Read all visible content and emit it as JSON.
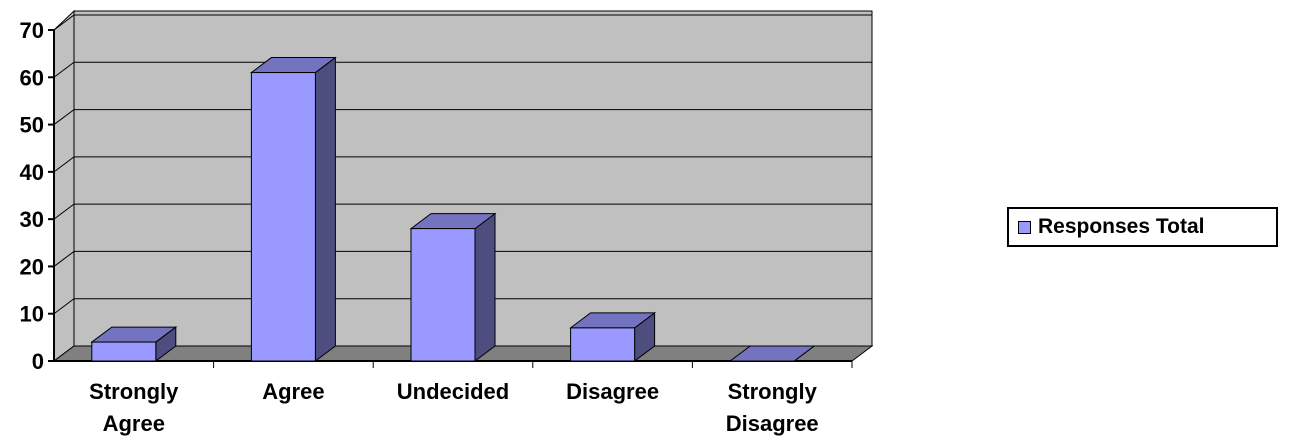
{
  "chart_data": {
    "type": "bar",
    "style": "3d-column",
    "categories": [
      [
        "Strongly",
        "Agree"
      ],
      [
        "Agree"
      ],
      [
        "Undecided"
      ],
      [
        "Disagree"
      ],
      [
        "Strongly",
        "Disagree"
      ]
    ],
    "series": [
      {
        "name": "Responses Total",
        "values": [
          4,
          61,
          28,
          7,
          0
        ]
      }
    ],
    "y_ticks": [
      "0",
      "10",
      "20",
      "30",
      "40",
      "50",
      "60",
      "70"
    ],
    "ylim": [
      0,
      70
    ],
    "grid": true,
    "legend_position": "right",
    "colors": {
      "bar_front": "#9999ff",
      "bar_side": "#4d4d80",
      "bar_top": "#7373bf",
      "wall": "#c0c0c0",
      "floor": "#808080",
      "gridline": "#000000"
    }
  },
  "legend": {
    "label": "Responses Total"
  }
}
